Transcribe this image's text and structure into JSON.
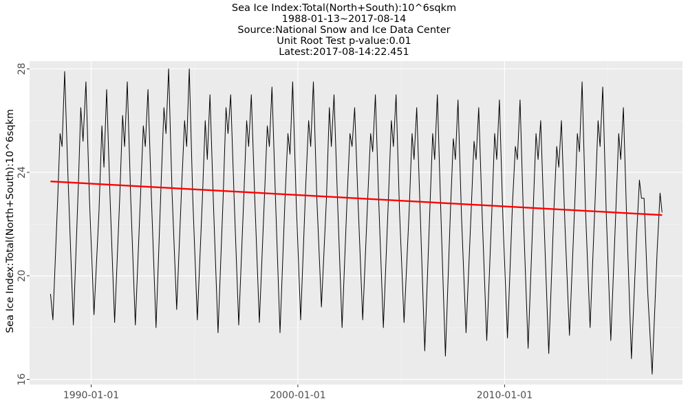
{
  "chart_data": {
    "type": "line",
    "title_lines": [
      "Sea Ice Index:Total(North+South):10^6sqkm",
      "1988-01-13~2017-08-14",
      "Source:National Snow and Ice Data Center",
      "Unit Root Test p-value:0.01",
      "Latest:2017-08-14:22.451"
    ],
    "ylabel": "Sea Ice Index:Total(North+South):10^6sqkm",
    "xlabel": "",
    "x_ticks": [
      "1990-01-01",
      "2000-01-01",
      "2010-01-01"
    ],
    "y_ticks": [
      "16",
      "20",
      "24",
      "28"
    ],
    "x_range": [
      "1987-01-09",
      "2018-08-10"
    ],
    "y_range": [
      15.8,
      28.3
    ],
    "grid": true,
    "background": "#ebebeb",
    "series": [
      {
        "color": "#000000",
        "points": [
          [
            "1988-01-13",
            19.3
          ],
          [
            "1988-02-25",
            18.3
          ],
          [
            "1988-05-20",
            23.0
          ],
          [
            "1988-07-01",
            25.5
          ],
          [
            "1988-08-05",
            25.0
          ],
          [
            "1988-09-20",
            27.9
          ],
          [
            "1988-11-15",
            24.0
          ],
          [
            "1989-02-20",
            18.1
          ],
          [
            "1989-05-20",
            23.5
          ],
          [
            "1989-07-01",
            26.5
          ],
          [
            "1989-08-10",
            25.2
          ],
          [
            "1989-10-01",
            27.5
          ],
          [
            "1989-12-01",
            23.0
          ],
          [
            "1990-02-20",
            18.5
          ],
          [
            "1990-05-20",
            22.5
          ],
          [
            "1990-07-10",
            25.8
          ],
          [
            "1990-08-15",
            24.2
          ],
          [
            "1990-10-01",
            27.2
          ],
          [
            "1990-12-01",
            23.0
          ],
          [
            "1991-02-20",
            18.2
          ],
          [
            "1991-05-20",
            23.0
          ],
          [
            "1991-07-10",
            26.2
          ],
          [
            "1991-08-15",
            25.0
          ],
          [
            "1991-10-01",
            27.5
          ],
          [
            "1991-12-01",
            23.0
          ],
          [
            "1992-02-20",
            18.1
          ],
          [
            "1992-05-20",
            23.0
          ],
          [
            "1992-07-10",
            25.8
          ],
          [
            "1992-08-15",
            25.0
          ],
          [
            "1992-10-01",
            27.2
          ],
          [
            "1992-12-01",
            23.0
          ],
          [
            "1993-02-20",
            18.0
          ],
          [
            "1993-05-20",
            23.5
          ],
          [
            "1993-07-10",
            26.5
          ],
          [
            "1993-08-15",
            25.5
          ],
          [
            "1993-10-01",
            28.0
          ],
          [
            "1993-12-01",
            23.2
          ],
          [
            "1994-02-20",
            18.7
          ],
          [
            "1994-05-20",
            23.5
          ],
          [
            "1994-07-10",
            26.0
          ],
          [
            "1994-08-15",
            25.0
          ],
          [
            "1994-10-01",
            28.0
          ],
          [
            "1994-12-01",
            23.0
          ],
          [
            "1995-02-20",
            18.3
          ],
          [
            "1995-05-20",
            23.0
          ],
          [
            "1995-07-10",
            26.0
          ],
          [
            "1995-08-15",
            24.5
          ],
          [
            "1995-10-01",
            27.0
          ],
          [
            "1995-12-01",
            22.8
          ],
          [
            "1996-02-20",
            17.8
          ],
          [
            "1996-05-20",
            23.0
          ],
          [
            "1996-07-10",
            26.5
          ],
          [
            "1996-08-15",
            25.5
          ],
          [
            "1996-10-01",
            27.0
          ],
          [
            "1996-12-01",
            23.0
          ],
          [
            "1997-02-20",
            18.1
          ],
          [
            "1997-05-20",
            23.0
          ],
          [
            "1997-07-10",
            26.0
          ],
          [
            "1997-08-15",
            25.0
          ],
          [
            "1997-10-01",
            27.0
          ],
          [
            "1997-12-01",
            23.0
          ],
          [
            "1998-02-20",
            18.2
          ],
          [
            "1998-05-20",
            23.0
          ],
          [
            "1998-07-10",
            25.8
          ],
          [
            "1998-08-15",
            25.0
          ],
          [
            "1998-10-01",
            27.3
          ],
          [
            "1998-12-01",
            23.0
          ],
          [
            "1999-02-20",
            17.8
          ],
          [
            "1999-05-20",
            23.0
          ],
          [
            "1999-07-10",
            25.5
          ],
          [
            "1999-08-15",
            24.7
          ],
          [
            "1999-10-01",
            27.5
          ],
          [
            "1999-12-01",
            23.0
          ],
          [
            "2000-02-20",
            18.3
          ],
          [
            "2000-05-20",
            23.5
          ],
          [
            "2000-07-10",
            26.0
          ],
          [
            "2000-08-15",
            25.0
          ],
          [
            "2000-10-01",
            27.5
          ],
          [
            "2000-12-01",
            23.0
          ],
          [
            "2001-02-20",
            18.8
          ],
          [
            "2001-05-20",
            23.0
          ],
          [
            "2001-07-10",
            26.5
          ],
          [
            "2001-08-15",
            25.0
          ],
          [
            "2001-10-01",
            27.0
          ],
          [
            "2001-12-01",
            23.0
          ],
          [
            "2002-02-20",
            18.0
          ],
          [
            "2002-05-20",
            23.0
          ],
          [
            "2002-07-10",
            25.5
          ],
          [
            "2002-08-15",
            25.0
          ],
          [
            "2002-10-01",
            26.5
          ],
          [
            "2002-12-01",
            22.8
          ],
          [
            "2003-02-20",
            18.3
          ],
          [
            "2003-05-20",
            23.0
          ],
          [
            "2003-07-10",
            25.5
          ],
          [
            "2003-08-15",
            24.8
          ],
          [
            "2003-10-01",
            27.0
          ],
          [
            "2003-12-01",
            22.8
          ],
          [
            "2004-02-20",
            18.0
          ],
          [
            "2004-05-20",
            23.0
          ],
          [
            "2004-07-10",
            26.0
          ],
          [
            "2004-08-15",
            25.0
          ],
          [
            "2004-10-01",
            27.0
          ],
          [
            "2004-12-01",
            22.5
          ],
          [
            "2005-02-20",
            18.2
          ],
          [
            "2005-05-20",
            22.5
          ],
          [
            "2005-07-10",
            25.5
          ],
          [
            "2005-08-15",
            24.5
          ],
          [
            "2005-10-01",
            26.5
          ],
          [
            "2005-12-01",
            22.5
          ],
          [
            "2006-02-20",
            17.1
          ],
          [
            "2006-05-20",
            22.5
          ],
          [
            "2006-07-10",
            25.5
          ],
          [
            "2006-08-15",
            24.5
          ],
          [
            "2006-10-01",
            27.0
          ],
          [
            "2006-12-01",
            22.5
          ],
          [
            "2007-02-20",
            16.9
          ],
          [
            "2007-05-20",
            22.5
          ],
          [
            "2007-07-10",
            25.3
          ],
          [
            "2007-08-15",
            24.5
          ],
          [
            "2007-10-01",
            26.8
          ],
          [
            "2007-12-01",
            22.3
          ],
          [
            "2008-02-20",
            17.8
          ],
          [
            "2008-05-20",
            22.5
          ],
          [
            "2008-07-10",
            25.2
          ],
          [
            "2008-08-15",
            24.5
          ],
          [
            "2008-10-01",
            26.5
          ],
          [
            "2008-12-01",
            22.3
          ],
          [
            "2009-02-20",
            17.5
          ],
          [
            "2009-05-20",
            22.5
          ],
          [
            "2009-07-10",
            25.5
          ],
          [
            "2009-08-15",
            24.5
          ],
          [
            "2009-10-01",
            26.8
          ],
          [
            "2009-12-01",
            22.3
          ],
          [
            "2010-02-20",
            17.6
          ],
          [
            "2010-05-20",
            22.8
          ],
          [
            "2010-07-10",
            25.0
          ],
          [
            "2010-08-15",
            24.5
          ],
          [
            "2010-10-01",
            26.8
          ],
          [
            "2010-12-01",
            22.2
          ],
          [
            "2011-02-20",
            17.2
          ],
          [
            "2011-05-20",
            22.5
          ],
          [
            "2011-07-10",
            25.5
          ],
          [
            "2011-08-15",
            24.5
          ],
          [
            "2011-10-01",
            26.0
          ],
          [
            "2011-12-01",
            22.0
          ],
          [
            "2012-02-20",
            17.0
          ],
          [
            "2012-05-20",
            22.5
          ],
          [
            "2012-07-10",
            25.0
          ],
          [
            "2012-08-15",
            24.2
          ],
          [
            "2012-10-01",
            26.0
          ],
          [
            "2012-12-01",
            22.0
          ],
          [
            "2013-02-20",
            17.7
          ],
          [
            "2013-05-20",
            22.5
          ],
          [
            "2013-07-10",
            25.5
          ],
          [
            "2013-08-15",
            24.8
          ],
          [
            "2013-10-01",
            27.5
          ],
          [
            "2013-12-01",
            22.5
          ],
          [
            "2014-02-20",
            18.0
          ],
          [
            "2014-05-20",
            23.0
          ],
          [
            "2014-07-10",
            26.0
          ],
          [
            "2014-08-15",
            25.0
          ],
          [
            "2014-10-01",
            27.3
          ],
          [
            "2014-12-01",
            22.5
          ],
          [
            "2015-02-20",
            17.5
          ],
          [
            "2015-05-20",
            22.5
          ],
          [
            "2015-07-10",
            25.5
          ],
          [
            "2015-08-15",
            24.5
          ],
          [
            "2015-10-01",
            26.5
          ],
          [
            "2015-12-01",
            22.0
          ],
          [
            "2016-02-20",
            16.8
          ],
          [
            "2016-05-20",
            21.5
          ],
          [
            "2016-07-10",
            23.7
          ],
          [
            "2016-08-15",
            23.0
          ],
          [
            "2016-10-01",
            23.0
          ],
          [
            "2016-12-01",
            19.5
          ],
          [
            "2017-02-20",
            16.2
          ],
          [
            "2017-05-20",
            21.0
          ],
          [
            "2017-07-10",
            23.2
          ],
          [
            "2017-08-14",
            22.451
          ]
        ]
      },
      {
        "color": "#ff0000",
        "points": [
          [
            "1988-01-13",
            23.65
          ],
          [
            "2017-08-14",
            22.35
          ]
        ]
      }
    ]
  }
}
